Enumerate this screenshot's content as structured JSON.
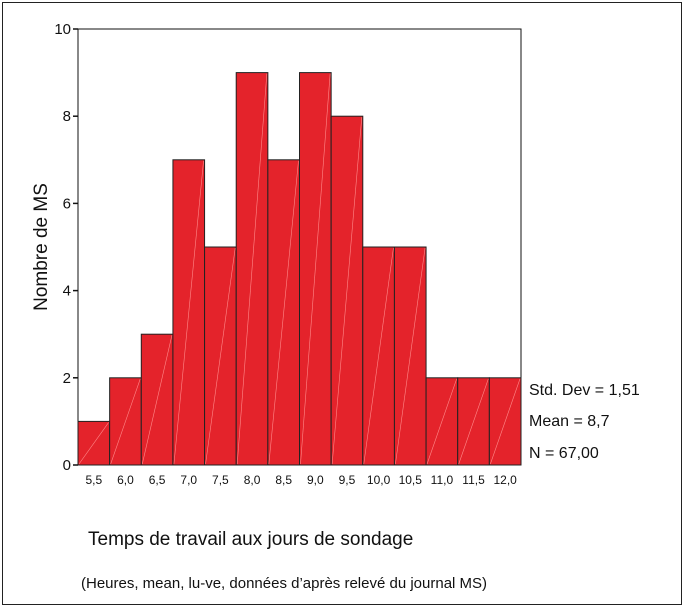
{
  "chart_data": {
    "type": "bar",
    "categories": [
      "5,5",
      "6,0",
      "6,5",
      "7,0",
      "7,5",
      "8,0",
      "8,5",
      "9,0",
      "9,5",
      "10,0",
      "10,5",
      "11,0",
      "11,5",
      "12,0"
    ],
    "values": [
      1,
      2,
      3,
      7,
      5,
      9,
      7,
      9,
      8,
      5,
      5,
      2,
      2,
      2
    ],
    "ylabel": "Nombre de MS",
    "ylim": [
      0,
      10
    ],
    "yticks": [
      "0",
      "2",
      "4",
      "6",
      "8",
      "10"
    ],
    "bar_color": "#e4232b",
    "grid": false,
    "legend": "none",
    "stats": [
      "Std. Dev = 1,51",
      "Mean = 8,7",
      "N = 67,00"
    ]
  },
  "caption": {
    "title": "Temps de travail aux jours de sondage",
    "subtitle": "(Heures, mean, lu-ve, données d’après relevé du journal MS)"
  }
}
